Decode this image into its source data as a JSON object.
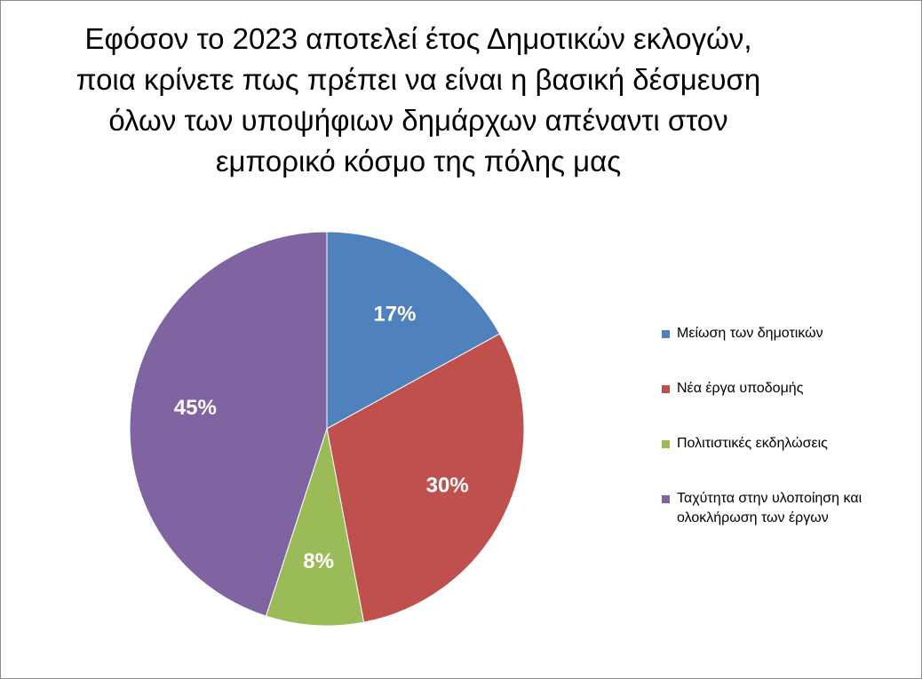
{
  "chart_data": {
    "type": "pie",
    "title_lines": [
      "Εφόσον το 2023 αποτελεί έτος Δημοτικών εκλογών,",
      "ποια κρίνετε πως πρέπει να είναι η βασική δέσμευση",
      "όλων των υποψήφιων δημάρχων απέναντι στον",
      "εμπορικό κόσμο της πόλης μας"
    ],
    "categories": [
      "Μείωση των δημοτικών",
      "Νέα έργα υποδομής",
      "Πολιτιστικές εκδηλώσεις",
      "Ταχύτητα στην υλοποίηση και ολοκλήρωση των έργων"
    ],
    "legend_lines": [
      [
        "Μείωση των δημοτικών"
      ],
      [
        "Νέα έργα υποδομής"
      ],
      [
        "Πολιτιστικές εκδηλώσεις"
      ],
      [
        "Ταχύτητα στην υλοποίηση και",
        "ολοκλήρωση των έργων"
      ]
    ],
    "values": [
      17,
      30,
      8,
      45
    ],
    "data_labels": [
      "17%",
      "30%",
      "8%",
      "45%"
    ],
    "unit": "%",
    "colors": [
      "#4f81bd",
      "#c0504d",
      "#9bbb59",
      "#8064a2"
    ],
    "legend_position": "right"
  }
}
